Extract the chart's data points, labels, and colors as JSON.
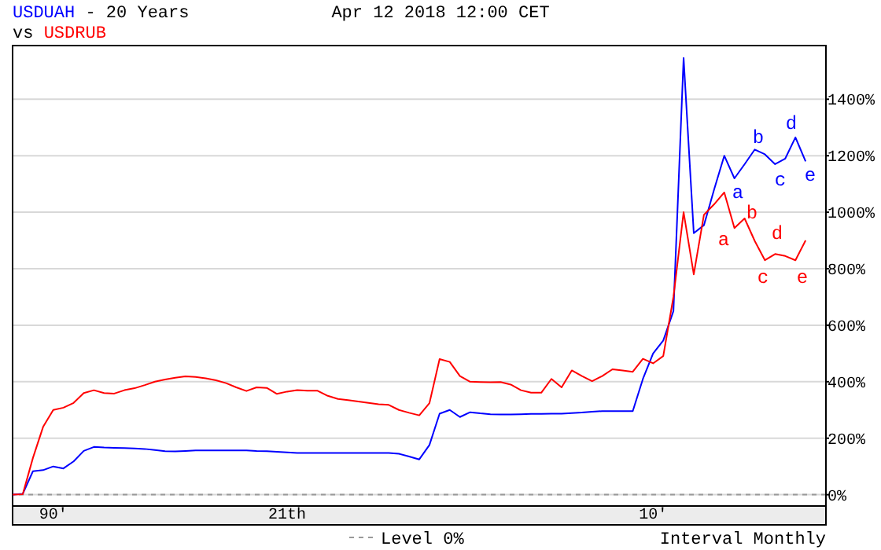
{
  "chart_data": {
    "type": "line",
    "title": "USDUAH - 20 Years",
    "subtitle": "vs USDRUB",
    "categories": [
      null,
      null,
      null,
      null,
      "90'",
      null,
      null,
      null,
      null,
      null,
      null,
      null,
      null,
      null,
      null,
      null,
      null,
      null,
      null,
      null,
      null,
      null,
      null,
      null,
      null,
      null,
      null,
      "21th",
      null,
      null,
      null,
      null,
      null,
      null,
      null,
      null,
      null,
      null,
      null,
      null,
      null,
      null,
      null,
      null,
      null,
      null,
      null,
      null,
      null,
      null,
      null,
      null,
      null,
      null,
      null,
      null,
      null,
      null,
      null,
      null,
      null,
      null,
      null,
      "10'",
      null,
      null,
      null,
      null,
      null,
      null,
      null,
      null,
      null,
      null,
      null,
      null,
      null,
      null,
      null,
      null,
      null
    ],
    "ylim": [
      -40,
      1590
    ],
    "yticks": [
      {
        "value": 0,
        "label": "0%"
      },
      {
        "value": 200,
        "label": "200%"
      },
      {
        "value": 400,
        "label": "400%"
      },
      {
        "value": 600,
        "label": "600%"
      },
      {
        "value": 800,
        "label": "800%"
      },
      {
        "value": 1000,
        "label": "1000%"
      },
      {
        "value": 1200,
        "label": "1200%"
      },
      {
        "value": 1400,
        "label": "1400%"
      }
    ],
    "grid": "y",
    "marker": "none",
    "line_style": "solid",
    "series": [
      {
        "color": "#0000ff",
        "values": [
          0,
          3,
          83,
          87,
          100,
          93,
          118,
          155,
          169,
          167,
          166,
          165,
          164,
          162,
          158,
          154,
          153,
          155,
          157,
          157,
          157,
          157,
          157,
          157,
          155,
          154,
          152,
          150,
          148,
          148,
          148,
          148,
          148,
          148,
          148,
          148,
          148,
          148,
          145,
          135,
          125,
          176,
          287,
          300,
          275,
          292,
          288,
          285,
          284,
          284,
          285,
          286,
          286,
          287,
          287,
          289,
          291,
          294,
          296,
          296,
          296,
          296,
          410,
          500,
          546,
          650,
          1546,
          926,
          954,
          1080,
          1200,
          1120,
          1170,
          1222,
          1205,
          1170,
          1190,
          1265,
          1180,
          null,
          null
        ]
      },
      {
        "color": "#ff0000",
        "values": [
          0,
          2,
          130,
          240,
          300,
          308,
          325,
          360,
          370,
          360,
          358,
          370,
          377,
          388,
          400,
          408,
          414,
          419,
          417,
          412,
          405,
          395,
          380,
          367,
          380,
          378,
          357,
          365,
          370,
          368,
          368,
          350,
          339,
          335,
          330,
          325,
          320,
          318,
          300,
          290,
          281,
          324,
          480,
          470,
          420,
          400,
          399,
          398,
          399,
          390,
          370,
          361,
          361,
          410,
          380,
          440,
          420,
          402,
          420,
          444,
          440,
          435,
          481,
          465,
          491,
          700,
          1000,
          780,
          991,
          1028,
          1070,
          944,
          978,
          898,
          830,
          852,
          845,
          830,
          900,
          null,
          null
        ]
      }
    ],
    "ref_lines": [
      {
        "axis": "y",
        "value": 0,
        "label": "Level 0%",
        "color": "#999999",
        "line_style": "dashed"
      }
    ],
    "annotations": [
      "Apr 12 2018 12:00 CET",
      "Interval Monthly",
      "a",
      "b",
      "c",
      "d",
      "e",
      "a",
      "b",
      "c",
      "d",
      "e"
    ]
  }
}
